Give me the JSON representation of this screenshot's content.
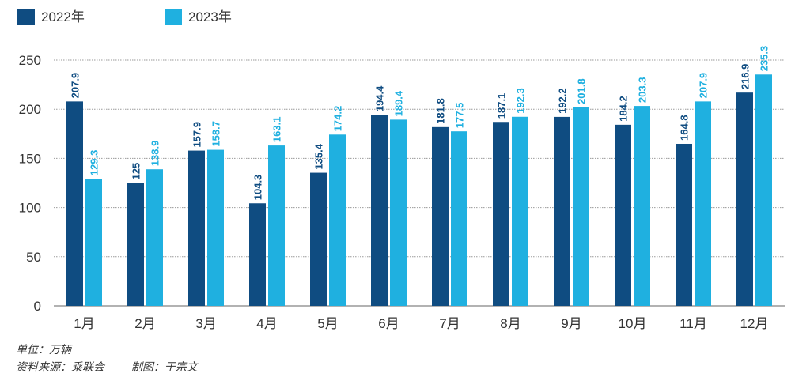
{
  "colors": {
    "s2022": "#0f4c81",
    "s2023": "#1fb0e0",
    "axis": "#666666",
    "grid": "#9a9a9a",
    "text": "#333333"
  },
  "chart_data": {
    "type": "bar",
    "title": "",
    "xlabel": "",
    "ylabel": "",
    "categories": [
      "1月",
      "2月",
      "3月",
      "4月",
      "5月",
      "6月",
      "7月",
      "8月",
      "9月",
      "10月",
      "11月",
      "12月"
    ],
    "series": [
      {
        "name": "2022年",
        "values": [
          207.9,
          125,
          157.9,
          104.3,
          135.4,
          194.4,
          181.8,
          187.1,
          192.2,
          184.2,
          164.8,
          216.9
        ]
      },
      {
        "name": "2023年",
        "values": [
          129.3,
          138.9,
          158.7,
          163.1,
          174.2,
          189.4,
          177.5,
          192.3,
          201.8,
          203.3,
          207.9,
          235.3
        ]
      }
    ],
    "data_labels": [
      [
        "207.9",
        "125",
        "157.9",
        "104.3",
        "135.4",
        "194.4",
        "181.8",
        "187.1",
        "192.2",
        "184.2",
        "164.8",
        "216.9"
      ],
      [
        "129.3",
        "138.9",
        "158.7",
        "163.1",
        "174.2",
        "189.4",
        "177.5",
        "192.3",
        "201.8",
        "203.3",
        "207.9",
        "235.3"
      ]
    ],
    "ylim": [
      0,
      250
    ],
    "yticks": [
      0,
      50,
      100,
      150,
      200,
      250
    ],
    "grid": true,
    "legend": "top-left"
  },
  "notes": {
    "unit": "单位：万辆",
    "source": "资料来源：乘联会",
    "author": "制图：于宗文"
  }
}
